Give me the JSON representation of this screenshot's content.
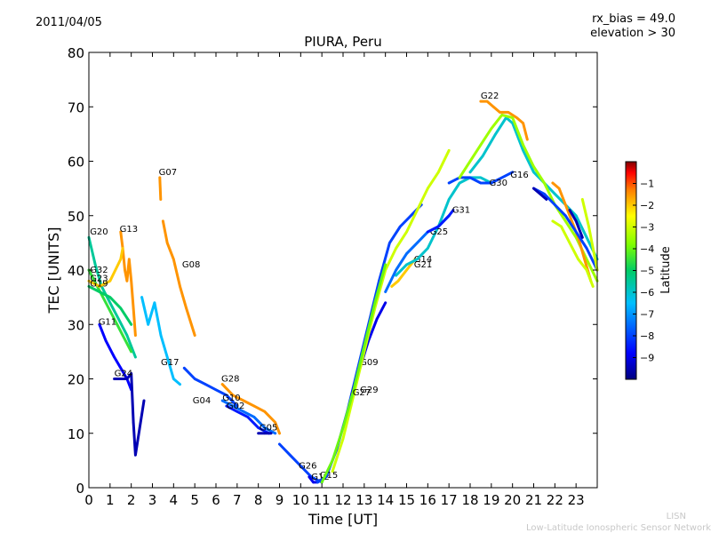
{
  "header": {
    "date": "2011/04/05",
    "rx_bias": "rx_bias = 49.0",
    "elevation": "elevation > 30"
  },
  "footer": {
    "credit_line_1": "LISN",
    "credit_line_2": "Low-Latitude Ionospheric Sensor Network"
  },
  "chart_data": {
    "type": "scatter",
    "title": "PIURA, Peru",
    "xlabel": "Time [UT]",
    "ylabel": "TEC [UNITS]",
    "xlim": [
      0,
      24
    ],
    "ylim": [
      0,
      80
    ],
    "xticks": [
      0,
      1,
      2,
      3,
      4,
      5,
      6,
      7,
      8,
      9,
      10,
      11,
      12,
      13,
      14,
      15,
      16,
      17,
      18,
      19,
      20,
      21,
      22,
      23
    ],
    "yticks": [
      0,
      10,
      20,
      30,
      40,
      50,
      60,
      70,
      80
    ],
    "colorbar": {
      "label": "Latitude",
      "ticks": [
        -1,
        -2,
        -3,
        -4,
        -5,
        -6,
        -7,
        -8,
        -9
      ],
      "range": [
        -10,
        0
      ],
      "colors": [
        "#00007f",
        "#0000ff",
        "#007fff",
        "#00ffff",
        "#7fff7f",
        "#00c000",
        "#ffff00",
        "#ff7f00",
        "#ff0000",
        "#7f0000"
      ]
    },
    "series": [
      {
        "name": "G20",
        "lat": -5.5,
        "label_at": [
          0.05,
          46.5
        ],
        "points": [
          [
            0.0,
            46
          ],
          [
            0.3,
            41
          ],
          [
            0.6,
            37
          ],
          [
            1.0,
            34
          ],
          [
            1.4,
            31
          ],
          [
            1.8,
            28
          ],
          [
            2.2,
            24
          ]
        ]
      },
      {
        "name": "G13",
        "lat": -1.5,
        "label_at": [
          1.45,
          47
        ],
        "points": [
          [
            1.5,
            47
          ],
          [
            1.6,
            44
          ],
          [
            1.7,
            40
          ],
          [
            1.8,
            38
          ],
          [
            1.9,
            42
          ],
          [
            2.0,
            38
          ],
          [
            2.1,
            33
          ],
          [
            2.2,
            28
          ]
        ]
      },
      {
        "name": "G32",
        "lat": -4.5,
        "label_at": [
          0.05,
          39.5
        ],
        "points": [
          [
            0.0,
            40
          ],
          [
            0.4,
            37
          ],
          [
            0.8,
            34
          ],
          [
            1.2,
            31
          ],
          [
            1.6,
            28
          ],
          [
            2.0,
            25
          ]
        ]
      },
      {
        "name": "G23",
        "lat": -2.0,
        "label_at": [
          0.05,
          38
        ],
        "points": [
          [
            0.0,
            38
          ],
          [
            0.5,
            37
          ],
          [
            1.0,
            38
          ],
          [
            1.5,
            42
          ],
          [
            1.6,
            44
          ]
        ]
      },
      {
        "name": "G19",
        "lat": -5.0,
        "label_at": [
          0.05,
          37
        ],
        "points": [
          [
            0.0,
            37
          ],
          [
            0.5,
            36
          ],
          [
            1.0,
            35
          ],
          [
            1.5,
            33
          ],
          [
            2.0,
            30
          ]
        ]
      },
      {
        "name": "G07",
        "lat": -1.5,
        "label_at": [
          3.3,
          57.5
        ],
        "points": [
          [
            3.35,
            57
          ],
          [
            3.37,
            55
          ],
          [
            3.39,
            53
          ]
        ]
      },
      {
        "name": "G08",
        "lat": -1.5,
        "label_at": [
          4.4,
          40.5
        ],
        "points": [
          [
            3.5,
            49
          ],
          [
            3.7,
            45
          ],
          [
            4.0,
            42
          ],
          [
            4.3,
            37
          ],
          [
            4.6,
            33
          ],
          [
            5.0,
            28
          ]
        ]
      },
      {
        "name": "G11",
        "lat": -8.8,
        "label_at": [
          0.45,
          30
        ],
        "points": [
          [
            0.5,
            30
          ],
          [
            0.8,
            27
          ],
          [
            1.2,
            24
          ],
          [
            1.5,
            22
          ],
          [
            1.8,
            20
          ],
          [
            2.0,
            18
          ]
        ]
      },
      {
        "name": "G24",
        "lat": -9.5,
        "label_at": [
          1.2,
          20.5
        ],
        "points": [
          [
            1.2,
            20
          ],
          [
            1.5,
            20
          ],
          [
            1.8,
            20
          ],
          [
            2.0,
            21
          ],
          [
            2.1,
            12
          ],
          [
            2.2,
            6
          ],
          [
            2.4,
            11
          ],
          [
            2.6,
            16
          ]
        ]
      },
      {
        "name": "G17",
        "lat": -6.5,
        "label_at": [
          3.4,
          22.5
        ],
        "points": [
          [
            2.5,
            35
          ],
          [
            2.8,
            30
          ],
          [
            3.1,
            34
          ],
          [
            3.4,
            28
          ],
          [
            3.7,
            24
          ],
          [
            4.0,
            20
          ],
          [
            4.3,
            19
          ]
        ]
      },
      {
        "name": "G28",
        "lat": -1.5,
        "label_at": [
          6.25,
          19.5
        ],
        "points": [
          [
            6.3,
            19
          ],
          [
            6.8,
            17
          ],
          [
            7.3,
            16
          ],
          [
            7.8,
            15
          ],
          [
            8.3,
            14
          ],
          [
            8.8,
            12
          ],
          [
            9.0,
            10
          ]
        ]
      },
      {
        "name": "G04",
        "lat": -8.0,
        "label_at": [
          4.9,
          15.5
        ],
        "points": [
          [
            4.5,
            22
          ],
          [
            5.0,
            20
          ],
          [
            5.5,
            19
          ],
          [
            6.0,
            18
          ],
          [
            6.5,
            17
          ],
          [
            7.0,
            15
          ]
        ]
      },
      {
        "name": "G10",
        "lat": -7.5,
        "label_at": [
          6.3,
          16
        ],
        "points": [
          [
            6.3,
            16
          ],
          [
            6.8,
            15
          ],
          [
            7.3,
            14
          ],
          [
            7.8,
            13
          ],
          [
            8.3,
            11
          ],
          [
            8.8,
            10
          ]
        ]
      },
      {
        "name": "G02",
        "lat": -8.5,
        "label_at": [
          6.5,
          14.5
        ],
        "points": [
          [
            6.5,
            15
          ],
          [
            7.0,
            14
          ],
          [
            7.5,
            13
          ],
          [
            8.0,
            11
          ],
          [
            8.5,
            10
          ]
        ]
      },
      {
        "name": "G05",
        "lat": -9.5,
        "label_at": [
          8.05,
          10.5
        ],
        "points": [
          [
            8.0,
            10
          ],
          [
            8.3,
            10
          ],
          [
            8.6,
            10
          ]
        ]
      },
      {
        "name": "G26",
        "lat": -8.0,
        "label_at": [
          9.9,
          3.5
        ],
        "points": [
          [
            9.0,
            8
          ],
          [
            9.5,
            6
          ],
          [
            10.0,
            4
          ],
          [
            10.5,
            2
          ],
          [
            11.0,
            1
          ]
        ]
      },
      {
        "name": "G12",
        "lat": -9.0,
        "label_at": [
          10.5,
          1.5
        ],
        "points": [
          [
            10.4,
            2
          ],
          [
            10.6,
            1
          ],
          [
            10.8,
            1
          ]
        ]
      },
      {
        "name": "G15",
        "lat": -8.0,
        "label_at": [
          10.9,
          1.8
        ],
        "points": [
          [
            10.8,
            1
          ],
          [
            11.2,
            2
          ],
          [
            11.7,
            7
          ],
          [
            12.2,
            14
          ],
          [
            12.7,
            22
          ],
          [
            13.2,
            30
          ],
          [
            13.7,
            38
          ],
          [
            14.2,
            45
          ],
          [
            14.7,
            48
          ],
          [
            15.2,
            50
          ],
          [
            15.7,
            52
          ]
        ]
      },
      {
        "name": "G09",
        "lat": -9.0,
        "label_at": [
          12.8,
          22.5
        ],
        "points": [
          [
            12.4,
            17
          ],
          [
            12.8,
            22
          ],
          [
            13.2,
            27
          ],
          [
            13.6,
            31
          ],
          [
            14.0,
            34
          ]
        ]
      },
      {
        "name": "G29",
        "lat": -3.0,
        "label_at": [
          12.8,
          17.5
        ],
        "points": [
          [
            11.5,
            3
          ],
          [
            12.0,
            9
          ],
          [
            12.5,
            17
          ],
          [
            13.0,
            25
          ],
          [
            13.5,
            33
          ],
          [
            14.0,
            40
          ],
          [
            14.5,
            44
          ],
          [
            15.0,
            47
          ],
          [
            15.5,
            51
          ],
          [
            16.0,
            55
          ],
          [
            16.5,
            58
          ],
          [
            17.0,
            62
          ]
        ]
      },
      {
        "name": "G27",
        "lat": -4.0,
        "label_at": [
          12.45,
          17
        ],
        "points": [
          [
            11.0,
            1
          ],
          [
            11.5,
            5
          ],
          [
            12.0,
            11
          ],
          [
            12.5,
            18
          ],
          [
            13.0,
            26
          ],
          [
            13.5,
            34
          ],
          [
            14.0,
            41
          ]
        ]
      },
      {
        "name": "G14",
        "lat": -2.0,
        "label_at": [
          15.35,
          41.5
        ],
        "points": [
          [
            14.3,
            37
          ],
          [
            14.6,
            38
          ],
          [
            15.0,
            40
          ],
          [
            15.4,
            42
          ]
        ]
      },
      {
        "name": "G21",
        "lat": -6.0,
        "label_at": [
          15.35,
          40.5
        ],
        "points": [
          [
            14.5,
            39
          ],
          [
            15.0,
            41
          ],
          [
            15.5,
            42
          ],
          [
            16.0,
            44
          ],
          [
            16.5,
            48
          ],
          [
            17.0,
            53
          ],
          [
            17.5,
            56
          ],
          [
            18.0,
            57
          ],
          [
            18.5,
            57
          ],
          [
            19.0,
            56
          ]
        ]
      },
      {
        "name": "G25",
        "lat": -7.5,
        "label_at": [
          16.1,
          46.5
        ],
        "points": [
          [
            14.0,
            36
          ],
          [
            14.5,
            40
          ],
          [
            15.0,
            43
          ],
          [
            15.5,
            45
          ],
          [
            16.0,
            47
          ],
          [
            16.5,
            48
          ],
          [
            17.0,
            50
          ]
        ]
      },
      {
        "name": "G31",
        "lat": -8.5,
        "label_at": [
          17.15,
          50.5
        ],
        "points": [
          [
            16.0,
            47
          ],
          [
            16.5,
            48
          ],
          [
            17.0,
            50
          ],
          [
            17.2,
            51
          ]
        ]
      },
      {
        "name": "G22",
        "lat": -1.5,
        "label_at": [
          18.5,
          71.5
        ],
        "points": [
          [
            18.5,
            71
          ],
          [
            18.8,
            71
          ],
          [
            19.1,
            70
          ],
          [
            19.4,
            69
          ],
          [
            19.8,
            69
          ],
          [
            20.2,
            68
          ],
          [
            20.5,
            67
          ],
          [
            20.7,
            64
          ]
        ]
      },
      {
        "name": "G30",
        "lat": -8.0,
        "label_at": [
          18.9,
          55.5
        ],
        "points": [
          [
            17.0,
            56
          ],
          [
            17.5,
            57
          ],
          [
            18.0,
            57
          ],
          [
            18.5,
            56
          ],
          [
            19.0,
            56
          ],
          [
            19.5,
            57
          ],
          [
            20.0,
            58
          ]
        ]
      },
      {
        "name": "G16",
        "lat": -6.0,
        "label_at": [
          19.9,
          57
        ],
        "points": [
          [
            18.0,
            58
          ],
          [
            18.6,
            61
          ],
          [
            19.2,
            65
          ],
          [
            19.7,
            68
          ],
          [
            20.0,
            67
          ],
          [
            20.5,
            62
          ],
          [
            21.0,
            58
          ],
          [
            21.5,
            56
          ],
          [
            22.0,
            54
          ],
          [
            22.5,
            52
          ],
          [
            23.0,
            50
          ],
          [
            23.5,
            46
          ],
          [
            24.0,
            42
          ]
        ]
      },
      {
        "name": "",
        "lat": -3.5,
        "label_at": null,
        "points": [
          [
            17.5,
            57
          ],
          [
            18.0,
            60
          ],
          [
            18.5,
            63
          ],
          [
            19.0,
            66
          ],
          [
            19.5,
            68.5
          ],
          [
            20.0,
            68
          ],
          [
            20.5,
            63
          ],
          [
            21.0,
            59
          ],
          [
            21.5,
            56
          ],
          [
            22.0,
            52
          ],
          [
            22.5,
            49
          ],
          [
            23.0,
            46
          ],
          [
            23.5,
            42
          ],
          [
            24.0,
            38
          ]
        ]
      },
      {
        "name": "",
        "lat": -1.5,
        "label_at": null,
        "points": [
          [
            21.9,
            56
          ],
          [
            22.2,
            55
          ],
          [
            22.5,
            52
          ],
          [
            22.8,
            49
          ],
          [
            23.1,
            46
          ],
          [
            23.4,
            42
          ],
          [
            23.7,
            38
          ]
        ]
      },
      {
        "name": "",
        "lat": -3.0,
        "label_at": null,
        "points": [
          [
            21.9,
            49
          ],
          [
            22.3,
            48
          ],
          [
            22.7,
            45
          ],
          [
            23.1,
            42
          ],
          [
            23.5,
            40
          ],
          [
            23.8,
            37
          ]
        ]
      },
      {
        "name": "",
        "lat": -8.0,
        "label_at": null,
        "points": [
          [
            21.0,
            55
          ],
          [
            21.5,
            54
          ],
          [
            22.0,
            52
          ],
          [
            22.5,
            50
          ],
          [
            23.0,
            47
          ],
          [
            23.5,
            44
          ],
          [
            24.0,
            40
          ]
        ]
      },
      {
        "name": "",
        "lat": -9.5,
        "label_at": null,
        "points": [
          [
            21.0,
            55
          ],
          [
            21.3,
            54
          ],
          [
            21.6,
            53
          ]
        ]
      },
      {
        "name": "",
        "lat": -9.5,
        "label_at": null,
        "points": [
          [
            22.7,
            51
          ],
          [
            23.0,
            49
          ],
          [
            23.3,
            46
          ]
        ]
      },
      {
        "name": "",
        "lat": -3.0,
        "label_at": null,
        "points": [
          [
            23.3,
            53
          ],
          [
            23.6,
            48
          ],
          [
            24.0,
            40
          ]
        ]
      }
    ]
  }
}
